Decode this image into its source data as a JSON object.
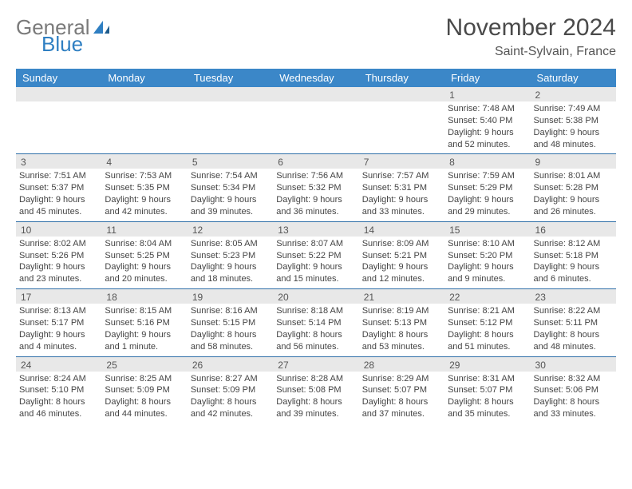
{
  "brand": {
    "general": "General",
    "blue": "Blue",
    "logo_color": "#2f7fc2"
  },
  "header": {
    "title": "November 2024",
    "location": "Saint-Sylvain, France"
  },
  "colors": {
    "header_bg": "#3b87c8",
    "daynum_bg": "#e8e8e8",
    "rule": "#2f6fa8"
  },
  "weekdays": [
    "Sunday",
    "Monday",
    "Tuesday",
    "Wednesday",
    "Thursday",
    "Friday",
    "Saturday"
  ],
  "weeks": [
    [
      {
        "n": "",
        "sr": "",
        "ss": "",
        "dl": ""
      },
      {
        "n": "",
        "sr": "",
        "ss": "",
        "dl": ""
      },
      {
        "n": "",
        "sr": "",
        "ss": "",
        "dl": ""
      },
      {
        "n": "",
        "sr": "",
        "ss": "",
        "dl": ""
      },
      {
        "n": "",
        "sr": "",
        "ss": "",
        "dl": ""
      },
      {
        "n": "1",
        "sr": "Sunrise: 7:48 AM",
        "ss": "Sunset: 5:40 PM",
        "dl": "Daylight: 9 hours and 52 minutes."
      },
      {
        "n": "2",
        "sr": "Sunrise: 7:49 AM",
        "ss": "Sunset: 5:38 PM",
        "dl": "Daylight: 9 hours and 48 minutes."
      }
    ],
    [
      {
        "n": "3",
        "sr": "Sunrise: 7:51 AM",
        "ss": "Sunset: 5:37 PM",
        "dl": "Daylight: 9 hours and 45 minutes."
      },
      {
        "n": "4",
        "sr": "Sunrise: 7:53 AM",
        "ss": "Sunset: 5:35 PM",
        "dl": "Daylight: 9 hours and 42 minutes."
      },
      {
        "n": "5",
        "sr": "Sunrise: 7:54 AM",
        "ss": "Sunset: 5:34 PM",
        "dl": "Daylight: 9 hours and 39 minutes."
      },
      {
        "n": "6",
        "sr": "Sunrise: 7:56 AM",
        "ss": "Sunset: 5:32 PM",
        "dl": "Daylight: 9 hours and 36 minutes."
      },
      {
        "n": "7",
        "sr": "Sunrise: 7:57 AM",
        "ss": "Sunset: 5:31 PM",
        "dl": "Daylight: 9 hours and 33 minutes."
      },
      {
        "n": "8",
        "sr": "Sunrise: 7:59 AM",
        "ss": "Sunset: 5:29 PM",
        "dl": "Daylight: 9 hours and 29 minutes."
      },
      {
        "n": "9",
        "sr": "Sunrise: 8:01 AM",
        "ss": "Sunset: 5:28 PM",
        "dl": "Daylight: 9 hours and 26 minutes."
      }
    ],
    [
      {
        "n": "10",
        "sr": "Sunrise: 8:02 AM",
        "ss": "Sunset: 5:26 PM",
        "dl": "Daylight: 9 hours and 23 minutes."
      },
      {
        "n": "11",
        "sr": "Sunrise: 8:04 AM",
        "ss": "Sunset: 5:25 PM",
        "dl": "Daylight: 9 hours and 20 minutes."
      },
      {
        "n": "12",
        "sr": "Sunrise: 8:05 AM",
        "ss": "Sunset: 5:23 PM",
        "dl": "Daylight: 9 hours and 18 minutes."
      },
      {
        "n": "13",
        "sr": "Sunrise: 8:07 AM",
        "ss": "Sunset: 5:22 PM",
        "dl": "Daylight: 9 hours and 15 minutes."
      },
      {
        "n": "14",
        "sr": "Sunrise: 8:09 AM",
        "ss": "Sunset: 5:21 PM",
        "dl": "Daylight: 9 hours and 12 minutes."
      },
      {
        "n": "15",
        "sr": "Sunrise: 8:10 AM",
        "ss": "Sunset: 5:20 PM",
        "dl": "Daylight: 9 hours and 9 minutes."
      },
      {
        "n": "16",
        "sr": "Sunrise: 8:12 AM",
        "ss": "Sunset: 5:18 PM",
        "dl": "Daylight: 9 hours and 6 minutes."
      }
    ],
    [
      {
        "n": "17",
        "sr": "Sunrise: 8:13 AM",
        "ss": "Sunset: 5:17 PM",
        "dl": "Daylight: 9 hours and 4 minutes."
      },
      {
        "n": "18",
        "sr": "Sunrise: 8:15 AM",
        "ss": "Sunset: 5:16 PM",
        "dl": "Daylight: 9 hours and 1 minute."
      },
      {
        "n": "19",
        "sr": "Sunrise: 8:16 AM",
        "ss": "Sunset: 5:15 PM",
        "dl": "Daylight: 8 hours and 58 minutes."
      },
      {
        "n": "20",
        "sr": "Sunrise: 8:18 AM",
        "ss": "Sunset: 5:14 PM",
        "dl": "Daylight: 8 hours and 56 minutes."
      },
      {
        "n": "21",
        "sr": "Sunrise: 8:19 AM",
        "ss": "Sunset: 5:13 PM",
        "dl": "Daylight: 8 hours and 53 minutes."
      },
      {
        "n": "22",
        "sr": "Sunrise: 8:21 AM",
        "ss": "Sunset: 5:12 PM",
        "dl": "Daylight: 8 hours and 51 minutes."
      },
      {
        "n": "23",
        "sr": "Sunrise: 8:22 AM",
        "ss": "Sunset: 5:11 PM",
        "dl": "Daylight: 8 hours and 48 minutes."
      }
    ],
    [
      {
        "n": "24",
        "sr": "Sunrise: 8:24 AM",
        "ss": "Sunset: 5:10 PM",
        "dl": "Daylight: 8 hours and 46 minutes."
      },
      {
        "n": "25",
        "sr": "Sunrise: 8:25 AM",
        "ss": "Sunset: 5:09 PM",
        "dl": "Daylight: 8 hours and 44 minutes."
      },
      {
        "n": "26",
        "sr": "Sunrise: 8:27 AM",
        "ss": "Sunset: 5:09 PM",
        "dl": "Daylight: 8 hours and 42 minutes."
      },
      {
        "n": "27",
        "sr": "Sunrise: 8:28 AM",
        "ss": "Sunset: 5:08 PM",
        "dl": "Daylight: 8 hours and 39 minutes."
      },
      {
        "n": "28",
        "sr": "Sunrise: 8:29 AM",
        "ss": "Sunset: 5:07 PM",
        "dl": "Daylight: 8 hours and 37 minutes."
      },
      {
        "n": "29",
        "sr": "Sunrise: 8:31 AM",
        "ss": "Sunset: 5:07 PM",
        "dl": "Daylight: 8 hours and 35 minutes."
      },
      {
        "n": "30",
        "sr": "Sunrise: 8:32 AM",
        "ss": "Sunset: 5:06 PM",
        "dl": "Daylight: 8 hours and 33 minutes."
      }
    ]
  ]
}
